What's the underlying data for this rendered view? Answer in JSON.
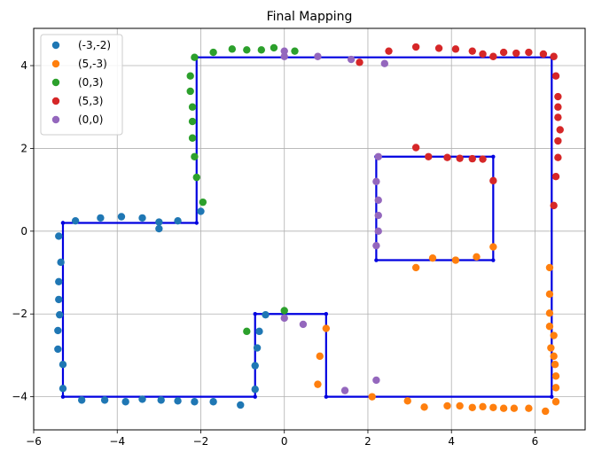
{
  "chart_data": {
    "type": "scatter",
    "title": "Final Mapping",
    "xlabel": "",
    "ylabel": "",
    "xlim": [
      -6,
      7.2
    ],
    "ylim": [
      -4.8,
      4.9
    ],
    "xticks": [
      -6,
      -4,
      -2,
      0,
      2,
      4,
      6
    ],
    "yticks": [
      -4,
      -2,
      0,
      2,
      4
    ],
    "xtick_labels": [
      "−6",
      "−4",
      "−2",
      "0",
      "2",
      "4",
      "6"
    ],
    "ytick_labels": [
      "−4",
      "−2",
      "0",
      "2",
      "4"
    ],
    "grid": true,
    "legend_position": "top-left",
    "series": [
      {
        "name": "(-3,-2)",
        "color": "#1f77b4",
        "points": [
          [
            -5.0,
            0.25
          ],
          [
            -4.4,
            0.32
          ],
          [
            -3.9,
            0.35
          ],
          [
            -3.4,
            0.32
          ],
          [
            -3.0,
            0.22
          ],
          [
            -2.55,
            0.25
          ],
          [
            -2.0,
            0.48
          ],
          [
            -3.0,
            0.06
          ],
          [
            -5.4,
            -0.12
          ],
          [
            -5.35,
            -0.75
          ],
          [
            -5.4,
            -1.22
          ],
          [
            -5.4,
            -1.65
          ],
          [
            -5.38,
            -2.02
          ],
          [
            -5.42,
            -2.4
          ],
          [
            -5.42,
            -2.85
          ],
          [
            -5.3,
            -3.22
          ],
          [
            -5.3,
            -3.8
          ],
          [
            -4.85,
            -4.08
          ],
          [
            -4.3,
            -4.08
          ],
          [
            -3.8,
            -4.12
          ],
          [
            -3.4,
            -4.06
          ],
          [
            -2.95,
            -4.08
          ],
          [
            -2.55,
            -4.1
          ],
          [
            -2.15,
            -4.12
          ],
          [
            -1.7,
            -4.12
          ],
          [
            -1.05,
            -4.2
          ],
          [
            -0.7,
            -3.82
          ],
          [
            -0.7,
            -3.25
          ],
          [
            -0.65,
            -2.82
          ],
          [
            -0.6,
            -2.42
          ],
          [
            -0.45,
            -2.02
          ]
        ]
      },
      {
        "name": "(5,-3)",
        "color": "#ff7f0e",
        "points": [
          [
            1.0,
            -2.35
          ],
          [
            0.85,
            -3.02
          ],
          [
            0.8,
            -3.7
          ],
          [
            2.1,
            -4.0
          ],
          [
            2.95,
            -4.1
          ],
          [
            3.35,
            -4.25
          ],
          [
            3.9,
            -4.22
          ],
          [
            4.2,
            -4.22
          ],
          [
            4.5,
            -4.26
          ],
          [
            4.75,
            -4.24
          ],
          [
            5.0,
            -4.26
          ],
          [
            5.25,
            -4.28
          ],
          [
            5.5,
            -4.28
          ],
          [
            5.85,
            -4.28
          ],
          [
            6.25,
            -4.35
          ],
          [
            6.5,
            -4.12
          ],
          [
            6.5,
            -3.78
          ],
          [
            6.5,
            -3.5
          ],
          [
            6.48,
            -3.22
          ],
          [
            6.45,
            -3.02
          ],
          [
            6.45,
            -2.52
          ],
          [
            6.38,
            -2.82
          ],
          [
            6.35,
            -2.3
          ],
          [
            6.35,
            -1.98
          ],
          [
            6.35,
            -1.52
          ],
          [
            6.35,
            -0.88
          ],
          [
            3.15,
            -0.88
          ],
          [
            3.55,
            -0.65
          ],
          [
            4.1,
            -0.7
          ],
          [
            4.6,
            -0.62
          ],
          [
            5.0,
            -0.38
          ]
        ]
      },
      {
        "name": "(0,3)",
        "color": "#2ca02c",
        "points": [
          [
            -0.9,
            -2.42
          ],
          [
            0.0,
            -1.92
          ],
          [
            -1.95,
            0.7
          ],
          [
            -2.1,
            1.3
          ],
          [
            -2.15,
            1.8
          ],
          [
            -2.2,
            2.25
          ],
          [
            -2.2,
            2.65
          ],
          [
            -2.2,
            3.0
          ],
          [
            -2.25,
            3.38
          ],
          [
            -2.25,
            3.75
          ],
          [
            -2.15,
            4.2
          ],
          [
            -1.7,
            4.32
          ],
          [
            -1.25,
            4.4
          ],
          [
            -0.9,
            4.38
          ],
          [
            -0.55,
            4.38
          ],
          [
            -0.25,
            4.43
          ],
          [
            0.25,
            4.35
          ]
        ]
      },
      {
        "name": "(5,3)",
        "color": "#d62728",
        "points": [
          [
            1.8,
            4.08
          ],
          [
            2.5,
            4.35
          ],
          [
            3.15,
            4.45
          ],
          [
            3.7,
            4.42
          ],
          [
            4.1,
            4.4
          ],
          [
            4.5,
            4.35
          ],
          [
            4.75,
            4.28
          ],
          [
            5.0,
            4.22
          ],
          [
            5.25,
            4.32
          ],
          [
            5.55,
            4.3
          ],
          [
            5.85,
            4.32
          ],
          [
            6.2,
            4.28
          ],
          [
            6.45,
            4.22
          ],
          [
            6.5,
            3.75
          ],
          [
            6.55,
            3.25
          ],
          [
            6.55,
            3.0
          ],
          [
            6.55,
            2.75
          ],
          [
            6.6,
            2.45
          ],
          [
            6.55,
            2.18
          ],
          [
            6.55,
            1.78
          ],
          [
            6.5,
            1.32
          ],
          [
            6.45,
            0.62
          ],
          [
            3.15,
            2.02
          ],
          [
            3.45,
            1.8
          ],
          [
            3.9,
            1.78
          ],
          [
            4.2,
            1.76
          ],
          [
            4.5,
            1.75
          ],
          [
            4.75,
            1.74
          ],
          [
            5.0,
            1.22
          ]
        ]
      },
      {
        "name": "(0,0)",
        "color": "#9467bd",
        "points": [
          [
            0.0,
            4.35
          ],
          [
            0.0,
            4.22
          ],
          [
            0.8,
            4.22
          ],
          [
            1.6,
            4.15
          ],
          [
            2.4,
            4.05
          ],
          [
            2.25,
            1.8
          ],
          [
            2.2,
            1.2
          ],
          [
            2.25,
            0.75
          ],
          [
            2.25,
            0.38
          ],
          [
            2.25,
            0.0
          ],
          [
            2.2,
            -0.35
          ],
          [
            0.0,
            -2.1
          ],
          [
            0.45,
            -2.25
          ],
          [
            1.45,
            -3.85
          ],
          [
            2.2,
            -3.6
          ]
        ]
      }
    ],
    "path": {
      "color": "#0000e0",
      "polylines": [
        [
          [
            -5.3,
            0.2
          ],
          [
            -2.1,
            0.2
          ],
          [
            -2.1,
            4.2
          ],
          [
            6.4,
            4.2
          ],
          [
            6.4,
            -4.0
          ],
          [
            1.0,
            -4.0
          ],
          [
            1.0,
            -2.0
          ],
          [
            -0.7,
            -2.0
          ],
          [
            -0.7,
            -4.0
          ],
          [
            -5.3,
            -4.0
          ],
          [
            -5.3,
            0.2
          ]
        ],
        [
          [
            2.2,
            1.8
          ],
          [
            5.0,
            1.8
          ],
          [
            5.0,
            -0.7
          ],
          [
            2.2,
            -0.7
          ],
          [
            2.2,
            1.8
          ]
        ]
      ]
    }
  }
}
